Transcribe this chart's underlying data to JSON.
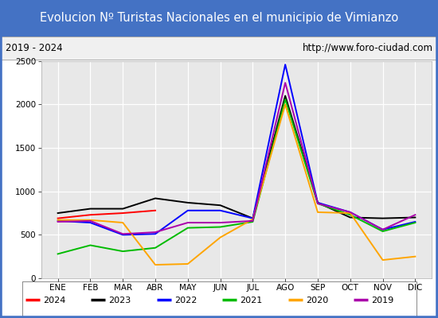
{
  "title": "Evolucion Nº Turistas Nacionales en el municipio de Vimianzo",
  "subtitle_left": "2019 - 2024",
  "subtitle_right": "http://www.foro-ciudad.com",
  "months": [
    "ENE",
    "FEB",
    "MAR",
    "ABR",
    "MAY",
    "JUN",
    "JUL",
    "AGO",
    "SEP",
    "OCT",
    "NOV",
    "DIC"
  ],
  "ylim": [
    0,
    2500
  ],
  "yticks": [
    0,
    500,
    1000,
    1500,
    2000,
    2500
  ],
  "series": {
    "2024": {
      "color": "#ff0000",
      "values": [
        690,
        730,
        750,
        780,
        null,
        null,
        null,
        null,
        null,
        null,
        null,
        null
      ]
    },
    "2023": {
      "color": "#000000",
      "values": [
        750,
        800,
        800,
        920,
        870,
        840,
        690,
        2100,
        870,
        700,
        690,
        700
      ]
    },
    "2022": {
      "color": "#0000ff",
      "values": [
        660,
        640,
        500,
        510,
        780,
        780,
        690,
        2460,
        870,
        760,
        560,
        650
      ]
    },
    "2021": {
      "color": "#00bb00",
      "values": [
        280,
        380,
        310,
        350,
        580,
        590,
        650,
        2060,
        860,
        730,
        540,
        640
      ]
    },
    "2020": {
      "color": "#ffa500",
      "values": [
        670,
        670,
        640,
        155,
        165,
        470,
        680,
        2000,
        760,
        750,
        210,
        250
      ]
    },
    "2019": {
      "color": "#aa00aa",
      "values": [
        650,
        660,
        510,
        530,
        640,
        640,
        660,
        2250,
        860,
        760,
        560,
        730
      ]
    }
  },
  "title_bg_color": "#4472c4",
  "title_text_color": "#ffffff",
  "plot_bg_color": "#e8e8e8",
  "grid_color": "#ffffff",
  "outer_border_color": "#4472c4",
  "legend_order": [
    "2024",
    "2023",
    "2022",
    "2021",
    "2020",
    "2019"
  ]
}
